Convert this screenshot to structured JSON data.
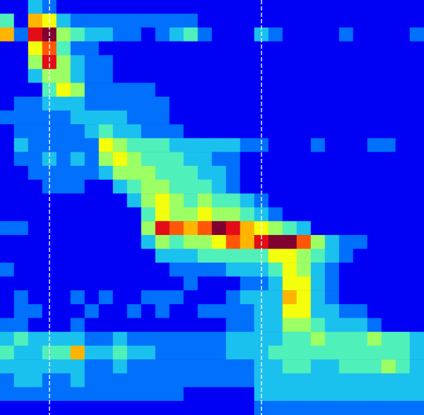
{
  "chart_data": {
    "type": "heatmap",
    "color_range": [
      0,
      9
    ],
    "markers_x": [
      3,
      18
    ],
    "tick_labels": false,
    "grid": false,
    "cells": [
      [
        0,
        0,
        2,
        1,
        0,
        0,
        0,
        0,
        0,
        0,
        0,
        0,
        0,
        0,
        0,
        0,
        0,
        0,
        0,
        0,
        0,
        0,
        0,
        0,
        0,
        0,
        0,
        0,
        0,
        0
      ],
      [
        3,
        0,
        6,
        5,
        2,
        1,
        1,
        1,
        1,
        1,
        1,
        1,
        1,
        1,
        0,
        0,
        0,
        0,
        0,
        0,
        0,
        0,
        0,
        0,
        0,
        0,
        0,
        0,
        0,
        0
      ],
      [
        6,
        1,
        8,
        9,
        4,
        3,
        2,
        2,
        1,
        1,
        0,
        1,
        2,
        3,
        1,
        0,
        0,
        0,
        2,
        1,
        0,
        0,
        0,
        0,
        1,
        0,
        0,
        0,
        0,
        1
      ],
      [
        0,
        0,
        5,
        7,
        3,
        1,
        1,
        0,
        0,
        0,
        0,
        0,
        0,
        0,
        0,
        0,
        0,
        0,
        0,
        0,
        0,
        0,
        0,
        0,
        0,
        0,
        0,
        0,
        0,
        0
      ],
      [
        0,
        0,
        4,
        8,
        4,
        2,
        1,
        1,
        0,
        0,
        0,
        0,
        0,
        0,
        0,
        0,
        0,
        0,
        0,
        0,
        0,
        0,
        0,
        0,
        0,
        0,
        0,
        0,
        0,
        0
      ],
      [
        0,
        0,
        2,
        4,
        4,
        2,
        1,
        1,
        0,
        0,
        0,
        0,
        0,
        0,
        0,
        0,
        0,
        0,
        0,
        0,
        0,
        0,
        0,
        0,
        0,
        0,
        0,
        0,
        0,
        0
      ],
      [
        0,
        0,
        0,
        3,
        5,
        4,
        1,
        1,
        1,
        1,
        1,
        0,
        0,
        0,
        0,
        0,
        0,
        0,
        0,
        0,
        0,
        0,
        0,
        0,
        0,
        0,
        0,
        0,
        0,
        0
      ],
      [
        0,
        1,
        1,
        2,
        2,
        2,
        1,
        1,
        1,
        1,
        1,
        1,
        0,
        0,
        0,
        0,
        0,
        0,
        0,
        0,
        0,
        0,
        0,
        0,
        0,
        0,
        0,
        0,
        0,
        0
      ],
      [
        1,
        1,
        1,
        1,
        1,
        2,
        2,
        2,
        2,
        1,
        1,
        1,
        0,
        0,
        0,
        0,
        0,
        0,
        0,
        0,
        0,
        0,
        0,
        0,
        0,
        0,
        0,
        0,
        0,
        0
      ],
      [
        0,
        1,
        1,
        1,
        1,
        1,
        2,
        3,
        2,
        2,
        1,
        1,
        1,
        0,
        0,
        0,
        0,
        0,
        0,
        0,
        0,
        0,
        0,
        0,
        0,
        0,
        0,
        0,
        0,
        0
      ],
      [
        0,
        2,
        1,
        1,
        1,
        1,
        1,
        5,
        4,
        3,
        3,
        3,
        2,
        2,
        2,
        2,
        2,
        1,
        1,
        0,
        0,
        0,
        1,
        0,
        0,
        0,
        1,
        1,
        0,
        0
      ],
      [
        0,
        1,
        1,
        2,
        1,
        2,
        1,
        4,
        5,
        4,
        3,
        3,
        3,
        2,
        2,
        1,
        1,
        0,
        0,
        0,
        0,
        0,
        0,
        0,
        0,
        0,
        0,
        0,
        0,
        0
      ],
      [
        0,
        0,
        1,
        1,
        1,
        1,
        1,
        2,
        4,
        4,
        4,
        3,
        3,
        3,
        2,
        2,
        1,
        0,
        0,
        0,
        0,
        0,
        0,
        0,
        0,
        0,
        0,
        0,
        0,
        0
      ],
      [
        0,
        0,
        0,
        1,
        1,
        1,
        0,
        0,
        2,
        3,
        4,
        4,
        3,
        3,
        3,
        2,
        1,
        0,
        0,
        0,
        0,
        0,
        0,
        0,
        0,
        0,
        0,
        0,
        0,
        0
      ],
      [
        0,
        0,
        0,
        0,
        0,
        0,
        0,
        0,
        0,
        2,
        4,
        5,
        4,
        3,
        4,
        3,
        3,
        2,
        1,
        0,
        0,
        0,
        0,
        0,
        0,
        0,
        0,
        0,
        0,
        0
      ],
      [
        0,
        0,
        0,
        0,
        0,
        0,
        0,
        0,
        0,
        0,
        3,
        5,
        4,
        4,
        5,
        4,
        4,
        3,
        2,
        1,
        0,
        0,
        0,
        0,
        0,
        0,
        0,
        0,
        0,
        0
      ],
      [
        1,
        1,
        0,
        0,
        0,
        0,
        0,
        0,
        0,
        0,
        4,
        8,
        7,
        6,
        7,
        9,
        8,
        6,
        5,
        4,
        3,
        2,
        0,
        0,
        0,
        0,
        0,
        0,
        0,
        0
      ],
      [
        0,
        0,
        0,
        0,
        0,
        0,
        0,
        0,
        0,
        0,
        2,
        4,
        3,
        4,
        4,
        5,
        7,
        6,
        8,
        9,
        9,
        7,
        4,
        2,
        1,
        1,
        0,
        0,
        0,
        0
      ],
      [
        0,
        0,
        0,
        0,
        0,
        0,
        0,
        0,
        0,
        0,
        0,
        2,
        2,
        2,
        3,
        3,
        3,
        3,
        3,
        5,
        5,
        4,
        3,
        2,
        1,
        0,
        0,
        0,
        0,
        0
      ],
      [
        1,
        0,
        0,
        0,
        0,
        0,
        0,
        0,
        0,
        0,
        0,
        0,
        1,
        1,
        1,
        1,
        2,
        2,
        2,
        3,
        5,
        4,
        2,
        1,
        0,
        0,
        0,
        0,
        0,
        0
      ],
      [
        0,
        0,
        0,
        0,
        0,
        0,
        0,
        0,
        0,
        0,
        0,
        0,
        0,
        1,
        0,
        0,
        0,
        1,
        1,
        2,
        5,
        5,
        2,
        1,
        0,
        0,
        0,
        0,
        0,
        0
      ],
      [
        0,
        1,
        0,
        0,
        0,
        1,
        0,
        1,
        0,
        0,
        1,
        1,
        1,
        0,
        0,
        0,
        1,
        2,
        2,
        2,
        6,
        5,
        2,
        1,
        0,
        0,
        0,
        0,
        0,
        0
      ],
      [
        0,
        1,
        1,
        0,
        0,
        0,
        1,
        0,
        0,
        1,
        0,
        1,
        0,
        0,
        1,
        1,
        1,
        1,
        2,
        2,
        5,
        5,
        2,
        2,
        1,
        1,
        0,
        0,
        0,
        0
      ],
      [
        1,
        1,
        0,
        0,
        0,
        1,
        0,
        0,
        0,
        0,
        0,
        0,
        0,
        0,
        0,
        0,
        1,
        1,
        2,
        2,
        4,
        4,
        3,
        2,
        2,
        2,
        1,
        0,
        0,
        0
      ],
      [
        2,
        3,
        2,
        2,
        2,
        2,
        1,
        1,
        2,
        1,
        1,
        1,
        1,
        1,
        1,
        1,
        2,
        2,
        2,
        2,
        3,
        3,
        4,
        3,
        3,
        3,
        4,
        3,
        3,
        2
      ],
      [
        3,
        2,
        2,
        3,
        3,
        6,
        2,
        2,
        3,
        2,
        2,
        1,
        1,
        1,
        1,
        1,
        2,
        2,
        2,
        3,
        3,
        3,
        3,
        3,
        3,
        3,
        3,
        3,
        3,
        2
      ],
      [
        2,
        2,
        2,
        2,
        2,
        2,
        1,
        1,
        2,
        1,
        1,
        1,
        1,
        1,
        1,
        1,
        1,
        1,
        2,
        2,
        3,
        3,
        2,
        2,
        3,
        3,
        3,
        4,
        3,
        2
      ],
      [
        1,
        2,
        2,
        1,
        1,
        2,
        1,
        1,
        1,
        1,
        1,
        1,
        1,
        1,
        1,
        1,
        1,
        1,
        2,
        2,
        2,
        2,
        2,
        2,
        2,
        2,
        2,
        2,
        2,
        2
      ],
      [
        1,
        1,
        1,
        1,
        1,
        1,
        1,
        1,
        1,
        1,
        1,
        1,
        1,
        0,
        0,
        0,
        0,
        0,
        2,
        2,
        2,
        2,
        2,
        2,
        2,
        2,
        2,
        2,
        2,
        2
      ],
      [
        0,
        0,
        0,
        0,
        0,
        0,
        0,
        0,
        0,
        0,
        0,
        0,
        0,
        0,
        0,
        0,
        0,
        0,
        1,
        1,
        1,
        1,
        1,
        1,
        1,
        1,
        1,
        1,
        1,
        1
      ]
    ]
  }
}
